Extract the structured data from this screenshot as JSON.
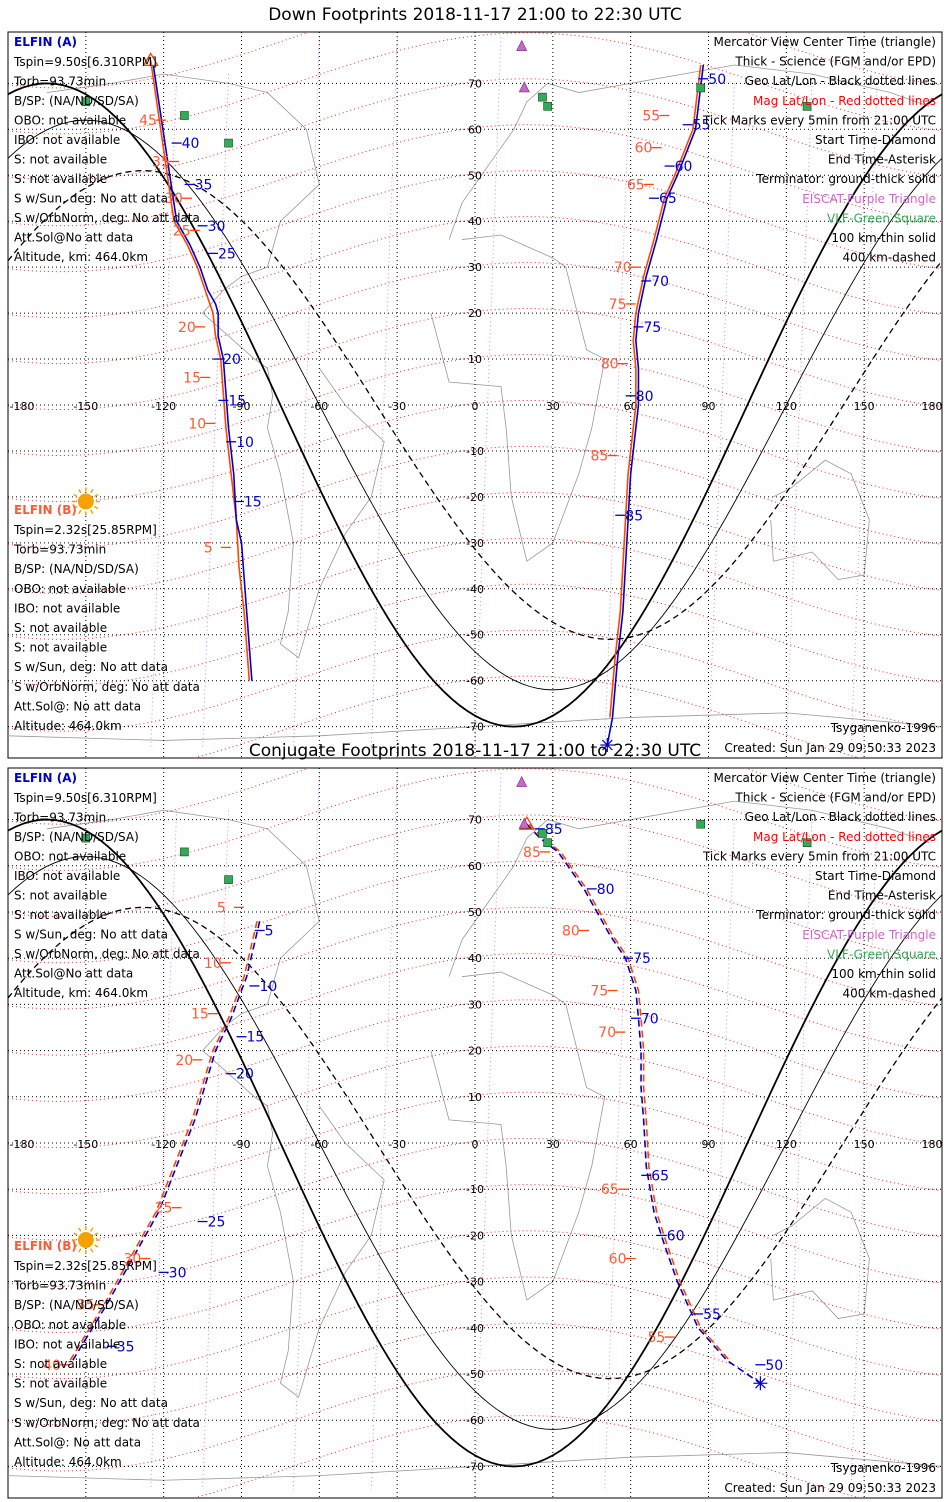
{
  "panels": [
    {
      "title": "Down Footprints 2018-11-17 21:00 to 22:30 UTC",
      "kind": "down",
      "info_a_header": "ELFIN (A)",
      "info_a": [
        "Tspin=9.50s[6.310RPM]",
        "Torb=93.73min",
        "B/SP: (NA/ND/SD/SA)",
        "OBO: not available",
        "IBO: not available",
        "S: not available",
        "S: not available",
        "S w/Sun, deg: No att data",
        "S w/OrbNorm, deg: No att data",
        "Att.Sol@No att data",
        "Altitude, km: 464.0km"
      ],
      "info_b_header": "ELFIN (B)",
      "info_b": [
        "Tspin=2.32s[25.85RPM]",
        "Torb=93.73min",
        "B/SP: (NA/ND/SD/SA)",
        "OBO: not available",
        "IBO: not available",
        "S: not available",
        "S: not available",
        "S w/Sun, deg: No att data",
        "S w/OrbNorm, deg: No att data",
        "Att.Sol@: No att data",
        "Altitude: 464.0km"
      ],
      "model": "Tsyganenko-1996",
      "created": "Created: Sun Jan 29 09:50:33 2023",
      "track_a": {
        "color": "#0000cc",
        "points": [
          [
            -124,
            74
          ],
          [
            -115,
            40
          ],
          [
            -110,
            35
          ],
          [
            -106,
            30
          ],
          [
            -103,
            25
          ],
          [
            -100,
            22
          ],
          [
            -99,
            20
          ],
          [
            -99,
            15
          ],
          [
            -97,
            10
          ],
          [
            -95,
            -5
          ],
          [
            -93,
            -15
          ],
          [
            -92,
            -25
          ],
          [
            -90,
            -30
          ],
          [
            -88,
            -45
          ],
          [
            -86,
            -60
          ]
        ]
      },
      "track_b": {
        "color": "#ff4500",
        "points": [
          [
            -125,
            75
          ],
          [
            -116,
            40
          ],
          [
            -111,
            35
          ],
          [
            -107,
            30
          ],
          [
            -104,
            25
          ],
          [
            -101,
            20
          ],
          [
            -100,
            15
          ],
          [
            -98,
            10
          ],
          [
            -96,
            -5
          ],
          [
            -94,
            -15
          ],
          [
            -92,
            -25
          ],
          [
            -91,
            -35
          ],
          [
            -89,
            -45
          ],
          [
            -87,
            -60
          ]
        ]
      },
      "track_a2": {
        "color": "#0000cc",
        "points": [
          [
            88,
            74
          ],
          [
            85,
            60
          ],
          [
            78,
            50
          ],
          [
            74,
            45
          ],
          [
            70,
            36
          ],
          [
            66,
            28
          ],
          [
            63,
            20
          ],
          [
            62,
            14
          ],
          [
            63,
            8
          ],
          [
            63,
            0
          ],
          [
            62,
            -5
          ],
          [
            60,
            -15
          ],
          [
            59,
            -25
          ],
          [
            58,
            -35
          ],
          [
            57,
            -45
          ],
          [
            55,
            -55
          ],
          [
            53,
            -68
          ],
          [
            51,
            -74
          ]
        ]
      },
      "track_b2": {
        "color": "#ff4500",
        "points": [
          [
            87,
            74
          ],
          [
            84,
            60
          ],
          [
            77,
            50
          ],
          [
            73,
            45
          ],
          [
            69,
            36
          ],
          [
            65,
            28
          ],
          [
            62,
            20
          ],
          [
            61,
            14
          ],
          [
            62,
            8
          ],
          [
            62,
            0
          ],
          [
            61,
            -5
          ],
          [
            59,
            -15
          ],
          [
            58,
            -25
          ],
          [
            57,
            -35
          ],
          [
            56,
            -45
          ],
          [
            54,
            -55
          ],
          [
            52,
            -68
          ]
        ]
      },
      "ticks_a": [
        {
          "label": "40",
          "p": [
            -115,
            57
          ]
        },
        {
          "label": "35",
          "p": [
            -110,
            48
          ]
        },
        {
          "label": "30",
          "p": [
            -105,
            39
          ]
        },
        {
          "label": "25",
          "p": [
            -101,
            33
          ]
        },
        {
          "label": "20",
          "p": [
            -99,
            10
          ]
        },
        {
          "label": "15",
          "p": [
            -97,
            1
          ]
        },
        {
          "label": "10",
          "p": [
            -94,
            -8
          ]
        },
        {
          "label": "15",
          "p": [
            -91,
            -21
          ]
        },
        {
          "label": "50",
          "p": [
            88,
            71
          ]
        },
        {
          "label": "55",
          "p": [
            82,
            61
          ]
        },
        {
          "label": "60",
          "p": [
            75,
            52
          ]
        },
        {
          "label": "65",
          "p": [
            69,
            45
          ]
        },
        {
          "label": "70",
          "p": [
            66,
            27
          ]
        },
        {
          "label": "75",
          "p": [
            63,
            17
          ]
        },
        {
          "label": "80",
          "p": [
            60,
            2
          ]
        },
        {
          "label": "85",
          "p": [
            56,
            -24
          ]
        }
      ],
      "ticks_b": [
        {
          "label": "45",
          "p": [
            -121,
            62
          ]
        },
        {
          "label": "35",
          "p": [
            -116,
            53
          ]
        },
        {
          "label": "30",
          "p": [
            -111,
            45
          ]
        },
        {
          "label": "25",
          "p": [
            -108,
            38
          ]
        },
        {
          "label": "20",
          "p": [
            -106,
            17
          ]
        },
        {
          "label": "15",
          "p": [
            -104,
            6
          ]
        },
        {
          "label": "10",
          "p": [
            -102,
            -4
          ]
        },
        {
          "label": "5",
          "p": [
            -96,
            -31
          ]
        },
        {
          "label": "55",
          "p": [
            73,
            63
          ]
        },
        {
          "label": "60",
          "p": [
            70,
            56
          ]
        },
        {
          "label": "65",
          "p": [
            67,
            48
          ]
        },
        {
          "label": "70",
          "p": [
            62,
            30
          ]
        },
        {
          "label": "75",
          "p": [
            60,
            22
          ]
        },
        {
          "label": "80",
          "p": [
            57,
            9
          ]
        },
        {
          "label": "85",
          "p": [
            53,
            -11
          ]
        }
      ],
      "start_marker": [
        -125,
        75
      ],
      "end_marker": [
        51,
        -74
      ]
    },
    {
      "title": "Conjugate Footprints 2018-11-17 21:00 to 22:30 UTC",
      "kind": "conj",
      "info_a_header": "ELFIN (A)",
      "info_a": [
        "Tspin=9.50s[6.310RPM]",
        "Torb=93.73min",
        "B/SP: (NA/ND/SD/SA)",
        "OBO: not available",
        "IBO: not available",
        "S: not available",
        "S: not available",
        "S w/Sun, deg: No att data",
        "S w/OrbNorm, deg: No att data",
        "Att.Sol@No att data",
        "Altitude, km: 464.0km"
      ],
      "info_b_header": "ELFIN (B)",
      "info_b": [
        "Tspin=2.32s[25.85RPM]",
        "Torb=93.73min",
        "B/SP: (NA/ND/SD/SA)",
        "OBO: not available",
        "IBO: not available",
        "S: not available",
        "S: not available",
        "S w/Sun, deg: No att data",
        "S w/OrbNorm, deg: No att data",
        "Att.Sol@: No att data",
        "Altitude: 464.0km"
      ],
      "model": "Tsyganenko-1996",
      "created": "Created: Sun Jan 29 09:50:33 2023",
      "track_a": {
        "color": "#0000cc",
        "points": [
          [
            -83,
            48
          ],
          [
            -88,
            36
          ],
          [
            -94,
            27
          ],
          [
            -100,
            20
          ],
          [
            -108,
            5
          ],
          [
            -115,
            -5
          ],
          [
            -122,
            -15
          ],
          [
            -132,
            -25
          ],
          [
            -142,
            -35
          ],
          [
            -155,
            -47
          ]
        ]
      },
      "track_b": {
        "color": "#ff4500",
        "points": [
          [
            -84,
            48
          ],
          [
            -89,
            36
          ],
          [
            -95,
            27
          ],
          [
            -101,
            20
          ],
          [
            -109,
            5
          ],
          [
            -116,
            -5
          ],
          [
            -123,
            -15
          ],
          [
            -133,
            -25
          ],
          [
            -143,
            -35
          ],
          [
            -156,
            -47
          ]
        ]
      },
      "track_a2": {
        "color": "#0000cc",
        "points": [
          [
            20,
            69
          ],
          [
            25,
            66
          ],
          [
            32,
            63
          ],
          [
            42,
            55
          ],
          [
            52,
            45
          ],
          [
            58,
            40
          ],
          [
            62,
            33
          ],
          [
            63,
            27
          ],
          [
            64,
            20
          ],
          [
            64,
            12
          ],
          [
            65,
            5
          ],
          [
            66,
            -5
          ],
          [
            69,
            -15
          ],
          [
            73,
            -22
          ],
          [
            78,
            -30
          ],
          [
            86,
            -40
          ],
          [
            97,
            -47
          ],
          [
            110,
            -52
          ]
        ]
      },
      "track_b2": {
        "color": "#ff4500",
        "points": [
          [
            21,
            69
          ],
          [
            26,
            66
          ],
          [
            33,
            63
          ],
          [
            43,
            55
          ],
          [
            53,
            45
          ],
          [
            59,
            40
          ],
          [
            63,
            33
          ],
          [
            64,
            27
          ],
          [
            65,
            20
          ],
          [
            65,
            12
          ],
          [
            66,
            5
          ],
          [
            67,
            -5
          ],
          [
            70,
            -15
          ],
          [
            74,
            -22
          ],
          [
            79,
            -30
          ],
          [
            87,
            -40
          ],
          [
            98,
            -47
          ]
        ]
      },
      "ticks_a": [
        {
          "label": "5",
          "p": [
            -83,
            46
          ]
        },
        {
          "label": "10",
          "p": [
            -85,
            34
          ]
        },
        {
          "label": "15",
          "p": [
            -90,
            23
          ]
        },
        {
          "label": "20",
          "p": [
            -94,
            15
          ]
        },
        {
          "label": "25",
          "p": [
            -105,
            -17
          ]
        },
        {
          "label": "30",
          "p": [
            -120,
            -28
          ]
        },
        {
          "label": "35",
          "p": [
            -140,
            -44
          ]
        },
        {
          "label": "85",
          "p": [
            25,
            68
          ]
        },
        {
          "label": "80",
          "p": [
            45,
            55
          ]
        },
        {
          "label": "75",
          "p": [
            59,
            40
          ]
        },
        {
          "label": "70",
          "p": [
            62,
            27
          ]
        },
        {
          "label": "65",
          "p": [
            66,
            -7
          ]
        },
        {
          "label": "60",
          "p": [
            72,
            -20
          ]
        },
        {
          "label": "55",
          "p": [
            86,
            -37
          ]
        },
        {
          "label": "50",
          "p": [
            110,
            -48
          ]
        }
      ],
      "ticks_b": [
        {
          "label": "5",
          "p": [
            -91,
            51
          ]
        },
        {
          "label": "10",
          "p": [
            -96,
            39
          ]
        },
        {
          "label": "15",
          "p": [
            -101,
            28
          ]
        },
        {
          "label": "20",
          "p": [
            -107,
            18
          ]
        },
        {
          "label": "25",
          "p": [
            -115,
            -14
          ]
        },
        {
          "label": "30",
          "p": [
            -127,
            -25
          ]
        },
        {
          "label": "35",
          "p": [
            -145,
            -35
          ]
        },
        {
          "label": "40",
          "p": [
            -158,
            -48
          ]
        },
        {
          "label": "85",
          "p": [
            27,
            63
          ]
        },
        {
          "label": "80",
          "p": [
            42,
            46
          ]
        },
        {
          "label": "75",
          "p": [
            53,
            33
          ]
        },
        {
          "label": "70",
          "p": [
            56,
            24
          ]
        },
        {
          "label": "65",
          "p": [
            57,
            -10
          ]
        },
        {
          "label": "60",
          "p": [
            60,
            -25
          ]
        },
        {
          "label": "55",
          "p": [
            75,
            -42
          ]
        }
      ],
      "start_marker": [
        20,
        69
      ],
      "end_marker": [
        110,
        -52
      ]
    }
  ],
  "legend_lines": [
    {
      "text": "Mercator View Center Time (triangle)",
      "color": "#000000"
    },
    {
      "text": "Thick - Science (FGM and/or EPD)",
      "color": "#000000"
    },
    {
      "text": "Geo Lat/Lon - Black dotted lines",
      "color": "#000000"
    },
    {
      "text": "Mag Lat/Lon - Red dotted lines",
      "color": "#ff0000"
    },
    {
      "text": "Tick Marks every 5min from 21:00 UTC",
      "color": "#000000"
    },
    {
      "text": "Start Time-Diamond",
      "color": "#000000"
    },
    {
      "text": "End Time-Asterisk",
      "color": "#000000"
    },
    {
      "text": "Terminator: ground-thick solid",
      "color": "#000000"
    },
    {
      "text": "EISCAT-Purple Triangle",
      "color": "#cc66cc"
    },
    {
      "text": "VLF-Green Square",
      "color": "#33aa55"
    },
    {
      "text": "100 km-thin solid",
      "color": "#000000"
    },
    {
      "text": "400 km-dashed",
      "color": "#000000"
    }
  ],
  "lon_labels": [
    "-180",
    "-150",
    "-120",
    "-90",
    "-60",
    "-30",
    "0",
    "30",
    "60",
    "90",
    "120",
    "150",
    "180"
  ],
  "lat_labels": [
    "70",
    "60",
    "50",
    "40",
    "30",
    "20",
    "10",
    "-10",
    "-20",
    "-30",
    "-40",
    "-50",
    "-60",
    "-70"
  ],
  "stations": {
    "eiscat": [
      [
        18,
        78
      ],
      [
        19,
        69
      ]
    ],
    "vlf": [
      [
        -150,
        66
      ],
      [
        -112,
        63
      ],
      [
        -95,
        57
      ],
      [
        26,
        67
      ],
      [
        28,
        65
      ],
      [
        87,
        69
      ],
      [
        128,
        65
      ]
    ]
  },
  "sun": [
    -150,
    -21
  ],
  "colors": {
    "mag_grid": "#ff2222",
    "geo_grid": "#000000",
    "mlt_radial": "#dd88dd",
    "coast": "#999999",
    "sun": "#f5a200"
  }
}
